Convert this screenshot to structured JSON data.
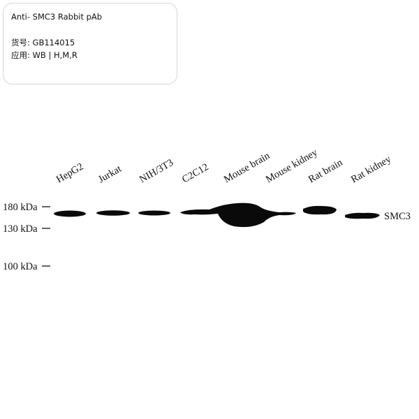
{
  "product": {
    "title": "Anti- SMC3 Rabbit pAb",
    "catalog": {
      "label": "货号:",
      "value": "GB114015"
    },
    "application": {
      "label": "应用:",
      "value": "WB | H,M,R"
    }
  },
  "blot": {
    "lanes": [
      "HepG2",
      "Jurkat",
      "NIH/3T3",
      "C2C12",
      "Mouse brain",
      "Mouse kidney",
      "Rat brain",
      "Rat kidney"
    ],
    "markers": [
      "180 kDa",
      "130 kDa",
      "100 kDa"
    ],
    "band_label": "SMC3"
  }
}
